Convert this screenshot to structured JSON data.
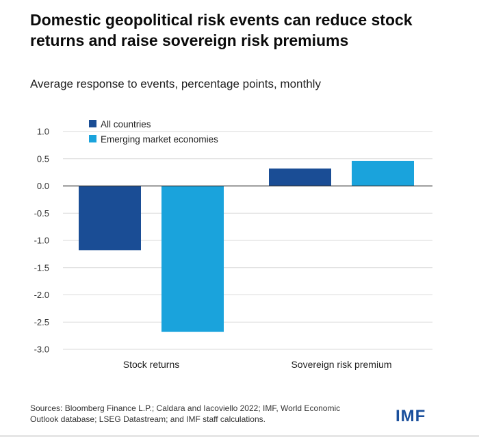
{
  "title": "Domestic geopolitical risk events can reduce stock returns and raise sovereign risk premiums",
  "subtitle": "Average response to events, percentage points, monthly",
  "source": "Sources: Bloomberg Finance L.P.; Caldara and Iacoviello 2022; IMF, World Economic Outlook database; LSEG Datastream; and IMF staff calculations.",
  "logo": "IMF",
  "colors": {
    "all_countries": "#1a4d95",
    "emerging": "#1aa3dc",
    "grid": "#d9d9d9",
    "axis": "#333333"
  },
  "chart_data": {
    "type": "bar",
    "title": "Domestic geopolitical risk events can reduce stock returns and raise sovereign risk premiums",
    "subtitle": "Average response to events, percentage points, monthly",
    "categories": [
      "Stock returns",
      "Sovereign risk premium"
    ],
    "series": [
      {
        "name": "All countries",
        "values": [
          -1.18,
          0.32
        ]
      },
      {
        "name": "Emerging market economies",
        "values": [
          -2.68,
          0.46
        ]
      }
    ],
    "ylim": [
      -3.0,
      1.0
    ],
    "yticks": [
      "1.0",
      "0.5",
      "0.0",
      "-0.5",
      "-1.0",
      "-1.5",
      "-2.0",
      "-2.5",
      "-3.0"
    ],
    "ytick_values": [
      1.0,
      0.5,
      0.0,
      -0.5,
      -1.0,
      -1.5,
      -2.0,
      -2.5,
      -3.0
    ],
    "xlabel": "",
    "ylabel": "",
    "grid": true,
    "legend_position": "top-left"
  }
}
